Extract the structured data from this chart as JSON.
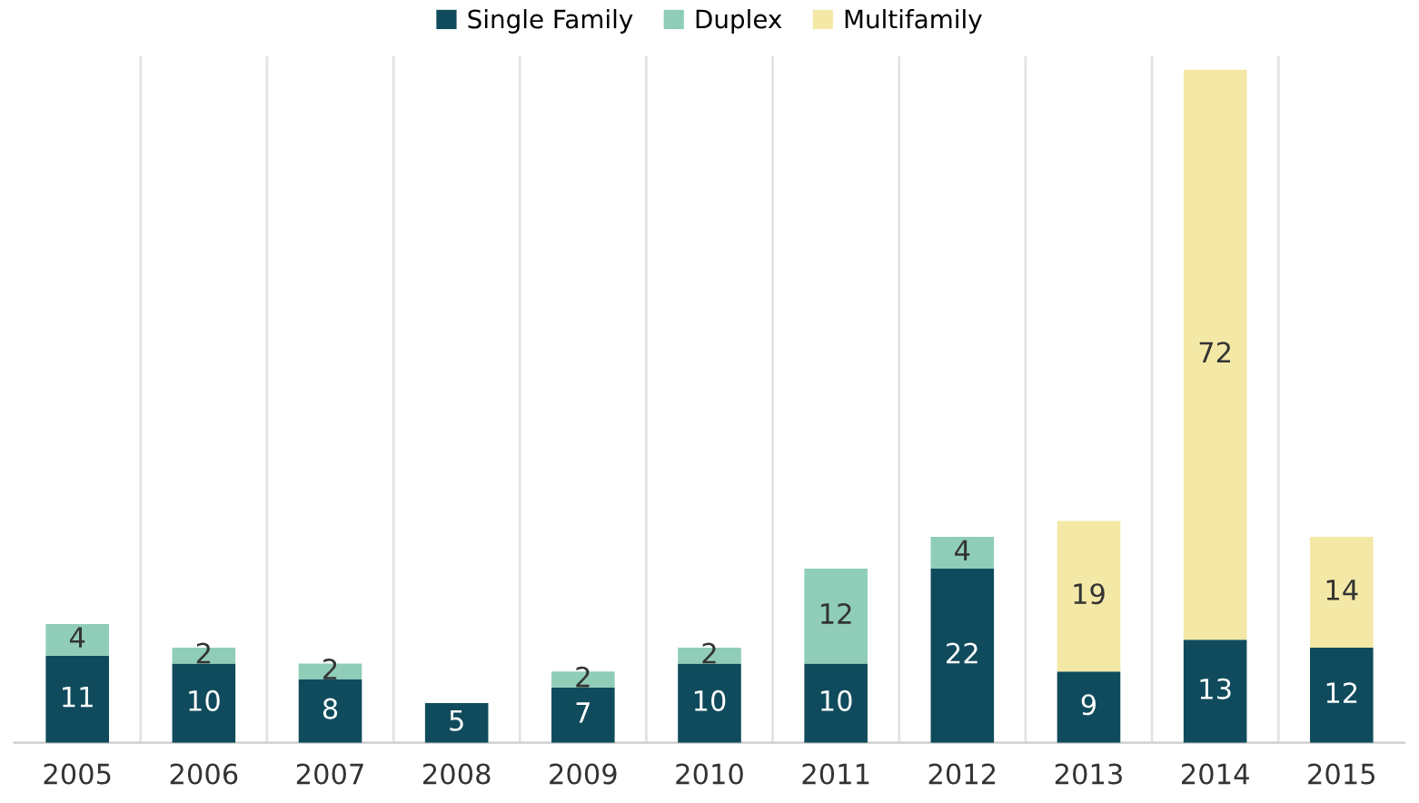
{
  "chart_data": {
    "type": "bar",
    "stacked": true,
    "data_labels": true,
    "legend": "top",
    "grid": "x",
    "categories": [
      "2005",
      "2006",
      "2007",
      "2008",
      "2009",
      "2010",
      "2011",
      "2012",
      "2013",
      "2014",
      "2015"
    ],
    "series": [
      {
        "name": "Single Family",
        "color": "#0f4b5c",
        "values": [
          11,
          10,
          8,
          5,
          7,
          10,
          10,
          22,
          9,
          13,
          12
        ]
      },
      {
        "name": "Duplex",
        "color": "#8fcdb9",
        "values": [
          4,
          2,
          2,
          null,
          2,
          2,
          12,
          4,
          null,
          null,
          null
        ]
      },
      {
        "name": "Multifamily",
        "color": "#f3e8a6",
        "values": [
          null,
          null,
          null,
          null,
          null,
          null,
          null,
          null,
          19,
          72,
          14
        ]
      }
    ]
  }
}
